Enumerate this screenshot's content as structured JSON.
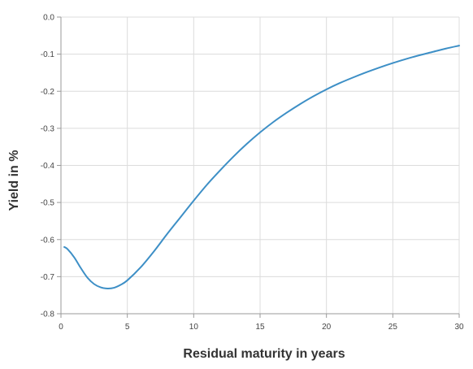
{
  "chart_data": {
    "type": "line",
    "title": "",
    "xlabel": "Residual maturity in years",
    "ylabel": "Yield in %",
    "xlim": [
      0,
      30
    ],
    "ylim": [
      -0.8,
      0.0
    ],
    "x_ticks": [
      0,
      5,
      10,
      15,
      20,
      25,
      30
    ],
    "x_tick_labels": [
      "0",
      "5",
      "10",
      "15",
      "20",
      "25",
      "30"
    ],
    "y_ticks": [
      0.0,
      -0.1,
      -0.2,
      -0.3,
      -0.4,
      -0.5,
      -0.6,
      -0.7,
      -0.8
    ],
    "y_tick_labels": [
      "0.0",
      "-0.1",
      "-0.2",
      "-0.3",
      "-0.4",
      "-0.5",
      "-0.6",
      "-0.7",
      "-0.8"
    ],
    "grid": true,
    "line_color": "#3d8fc6",
    "series": [
      {
        "x": [
          0.25,
          0.5,
          1,
          1.5,
          2,
          2.5,
          3,
          3.5,
          4,
          4.5,
          5,
          6,
          7,
          8,
          9,
          10,
          11,
          12,
          13,
          14,
          15,
          16,
          17,
          18,
          19,
          20,
          21,
          22,
          23,
          24,
          25,
          26,
          27,
          28,
          29,
          30
        ],
        "values": [
          -0.62,
          -0.626,
          -0.648,
          -0.677,
          -0.703,
          -0.72,
          -0.729,
          -0.732,
          -0.73,
          -0.722,
          -0.71,
          -0.675,
          -0.632,
          -0.585,
          -0.54,
          -0.495,
          -0.452,
          -0.413,
          -0.376,
          -0.342,
          -0.311,
          -0.283,
          -0.258,
          -0.235,
          -0.214,
          -0.195,
          -0.178,
          -0.163,
          -0.149,
          -0.136,
          -0.124,
          -0.113,
          -0.103,
          -0.094,
          -0.085,
          -0.077
        ]
      }
    ]
  }
}
